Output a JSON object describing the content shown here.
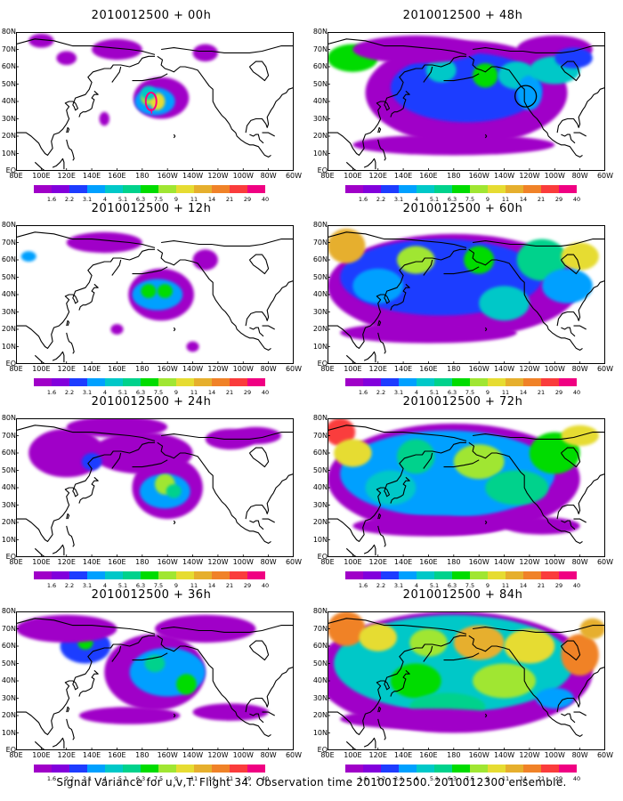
{
  "panels": [
    {
      "title": "2010012500 + 00h",
      "forecast_hour": 0
    },
    {
      "title": "2010012500 + 48h",
      "forecast_hour": 48
    },
    {
      "title": "2010012500 + 12h",
      "forecast_hour": 12
    },
    {
      "title": "2010012500 + 60h",
      "forecast_hour": 60
    },
    {
      "title": "2010012500 + 24h",
      "forecast_hour": 24
    },
    {
      "title": "2010012500 + 72h",
      "forecast_hour": 72
    },
    {
      "title": "2010012500 + 36h",
      "forecast_hour": 36
    },
    {
      "title": "2010012500 + 84h",
      "forecast_hour": 84
    }
  ],
  "lat_labels": [
    "80N",
    "70N",
    "60N",
    "50N",
    "40N",
    "30N",
    "20N",
    "10N",
    "EQ"
  ],
  "lon_labels": [
    "80E",
    "100E",
    "120E",
    "140E",
    "160E",
    "180",
    "160W",
    "140W",
    "120W",
    "100W",
    "80W",
    "60W"
  ],
  "colorbar": {
    "levels": [
      "1.6",
      "2.2",
      "3.1",
      "4",
      "5.1",
      "6.3",
      "7.5",
      "9",
      "11",
      "14",
      "21",
      "29",
      "40"
    ],
    "colors": [
      "#a000c8",
      "#8200dc",
      "#1e3cff",
      "#00a0ff",
      "#00c8c8",
      "#00d28c",
      "#00dc00",
      "#a0e632",
      "#e6dc32",
      "#e6af2d",
      "#f08228",
      "#fa3c3c",
      "#f00082"
    ]
  },
  "caption": "Signal Variance for u,v,T. Flight 34. Observation time 2010012500. 2010012300 ensemble.",
  "colors": {
    "background": "#ffffff",
    "coast": "#000000",
    "marker_00h": "#ff0080",
    "marker_48h": "#000000"
  }
}
